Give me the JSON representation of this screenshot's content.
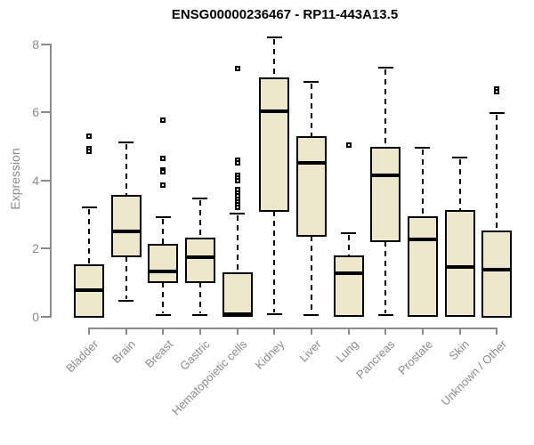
{
  "chart_data": {
    "type": "box",
    "title": "ENSG00000236467 - RP11-443A13.5",
    "xlabel": "",
    "ylabel": "Expression",
    "ylim": [
      0,
      8.3
    ],
    "yticks": [
      0,
      2,
      4,
      6,
      8
    ],
    "grid": "off",
    "legend": "none",
    "categories": [
      "Bladder",
      "Brain",
      "Breast",
      "Gastric",
      "Hematopoietic cells",
      "Kidney",
      "Liver",
      "Lung",
      "Pancreas",
      "Prostate",
      "Skin",
      "Unknown / Other"
    ],
    "series": [
      {
        "name": "Bladder",
        "whislo": 0,
        "q1": 0,
        "med": 0.77,
        "q3": 1.5,
        "whishi": 3.19,
        "outliers": [
          5.29,
          4.92,
          4.85
        ]
      },
      {
        "name": "Brain",
        "whislo": 0.46,
        "q1": 1.76,
        "med": 2.5,
        "q3": 3.55,
        "whishi": 5.11,
        "outliers": []
      },
      {
        "name": "Breast",
        "whislo": 0.03,
        "q1": 1.0,
        "med": 1.32,
        "q3": 2.1,
        "whishi": 2.91,
        "outliers": [
          5.77,
          4.64,
          4.3,
          4.24,
          3.85
        ]
      },
      {
        "name": "Gastric",
        "whislo": 0.03,
        "q1": 1.01,
        "med": 1.73,
        "q3": 2.3,
        "whishi": 3.46,
        "outliers": []
      },
      {
        "name": "Hematopoietic cells",
        "whislo": 0,
        "q1": 0,
        "med": 0.07,
        "q3": 1.28,
        "whishi": 3.02,
        "outliers": [
          7.29,
          4.59,
          4.5,
          4.15,
          4.06,
          3.98,
          3.72,
          3.62,
          3.53,
          3.45,
          3.37,
          3.29,
          3.2
        ]
      },
      {
        "name": "Kidney",
        "whislo": 0.07,
        "q1": 3.09,
        "med": 6.02,
        "q3": 7.0,
        "whishi": 8.2,
        "outliers": []
      },
      {
        "name": "Liver",
        "whislo": 0.04,
        "q1": 2.37,
        "med": 4.5,
        "q3": 5.27,
        "whishi": 6.9,
        "outliers": []
      },
      {
        "name": "Lung",
        "whislo": 0,
        "q1": 0,
        "med": 1.26,
        "q3": 1.76,
        "whishi": 2.45,
        "outliers": [
          5.02
        ]
      },
      {
        "name": "Pancreas",
        "whislo": 0.04,
        "q1": 2.22,
        "med": 4.15,
        "q3": 4.95,
        "whishi": 7.32,
        "outliers": []
      },
      {
        "name": "Prostate",
        "whislo": 0,
        "q1": 0,
        "med": 2.25,
        "q3": 2.91,
        "whishi": 4.95,
        "outliers": []
      },
      {
        "name": "Skin",
        "whislo": 0,
        "q1": 0,
        "med": 1.45,
        "q3": 3.09,
        "whishi": 4.67,
        "outliers": []
      },
      {
        "name": "Unknown / Other",
        "whislo": 0,
        "q1": 0,
        "med": 1.38,
        "q3": 2.5,
        "whishi": 5.97,
        "outliers": [
          6.68,
          6.6
        ]
      }
    ],
    "colors": {
      "box_fill": "#ede7cb",
      "box_border": "#000000",
      "median": "#000000",
      "whisker": "#000000",
      "axis": "#8a8a8a",
      "title": "#000000",
      "background": "#ffffff"
    }
  }
}
